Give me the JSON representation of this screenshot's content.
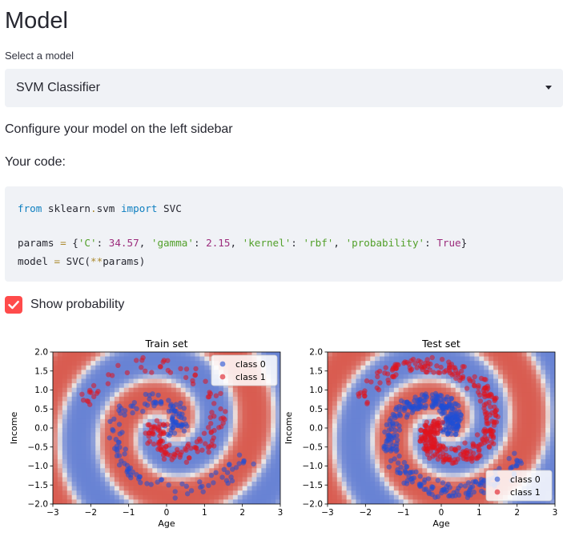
{
  "page": {
    "title": "Model",
    "select_label": "Select a model",
    "selected_model": "SVM Classifier",
    "configure_text": "Configure your model on the left sidebar",
    "code_heading": "Your code:"
  },
  "code": {
    "line1": {
      "kw1": "from",
      "module": " sklearn",
      "dot": ".",
      "sub": "svm",
      "kw2": "import",
      "cls": "SVC"
    },
    "line2": {
      "var": "params",
      "eq": " = ",
      "open": "{",
      "k1": "'C'",
      "v1": "34.57",
      "k2": "'gamma'",
      "v2": "2.15",
      "k3": "'kernel'",
      "v3": "'rbf'",
      "k4": "'probability'",
      "v4": "True",
      "close": "}"
    },
    "line3": {
      "var": "model",
      "eq": " = ",
      "cls": "SVC",
      "open": "(",
      "stars": "**",
      "arg": "params",
      "close": ")"
    }
  },
  "checkbox": {
    "label": "Show probability",
    "checked": true
  },
  "colors": {
    "accent": "#ff4b4b",
    "class0": "#1f4fd6",
    "class1": "#e0141e",
    "select_bg": "#f0f2f6"
  },
  "chart_data": [
    {
      "type": "scatter",
      "title": "Train set",
      "xlabel": "Age",
      "ylabel": "Income",
      "xlim": [
        -3,
        3
      ],
      "ylim": [
        -2.0,
        2.0
      ],
      "xticks": [
        "−3",
        "−2",
        "−1",
        "0",
        "1",
        "2",
        "3"
      ],
      "yticks": [
        "2.0",
        "1.5",
        "1.0",
        "0.5",
        "0.0",
        "−0.5",
        "−1.0",
        "−1.5",
        "−2.0"
      ],
      "legend": {
        "placement": "top-right",
        "entries": [
          "class 0",
          "class 1"
        ]
      },
      "background": "decision probability heatmap (blue = class 0, red = class 1)",
      "series": [
        {
          "name": "class 0",
          "shape": "spiral",
          "spiral_phase": 0,
          "points": 150
        },
        {
          "name": "class 1",
          "shape": "spiral",
          "spiral_phase": 180,
          "points": 150
        }
      ]
    },
    {
      "type": "scatter",
      "title": "Test set",
      "xlabel": "Age",
      "ylabel": "Income",
      "xlim": [
        -3,
        3
      ],
      "ylim": [
        -2.0,
        2.0
      ],
      "xticks": [
        "−3",
        "−2",
        "−1",
        "0",
        "1",
        "2",
        "3"
      ],
      "yticks": [
        "2.0",
        "1.5",
        "1.0",
        "0.5",
        "0.0",
        "−0.5",
        "−1.0",
        "−1.5",
        "−2.0"
      ],
      "legend": {
        "placement": "bottom-right",
        "entries": [
          "class 0",
          "class 1"
        ]
      },
      "background": "decision probability heatmap (blue = class 0, red = class 1)",
      "series": [
        {
          "name": "class 0",
          "shape": "spiral",
          "spiral_phase": 0,
          "points": 350
        },
        {
          "name": "class 1",
          "shape": "spiral",
          "spiral_phase": 180,
          "points": 350
        }
      ]
    }
  ]
}
